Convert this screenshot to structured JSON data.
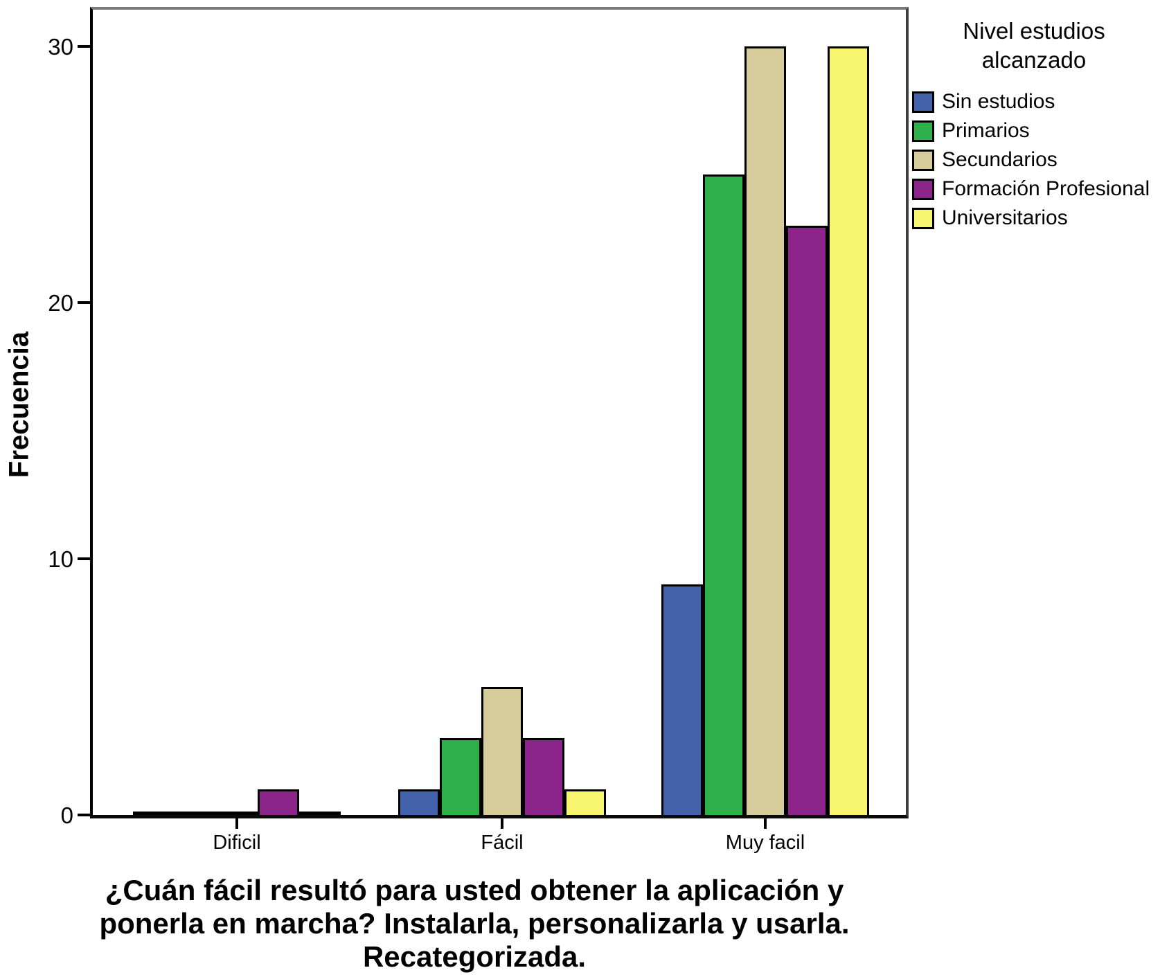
{
  "chart_data": {
    "type": "bar",
    "categories": [
      "Dificil",
      "Fácil",
      "Muy facil"
    ],
    "series": [
      {
        "name": "Sin estudios",
        "color": "#4461ac",
        "values": [
          0,
          1,
          9
        ]
      },
      {
        "name": "Primarios",
        "color": "#2eb14a",
        "values": [
          0,
          3,
          25
        ]
      },
      {
        "name": "Secundarios",
        "color": "#d5cb9b",
        "values": [
          0,
          5,
          30
        ]
      },
      {
        "name": "Formación Profesional",
        "color": "#8b2589",
        "values": [
          1,
          3,
          23
        ]
      },
      {
        "name": "Universitarios",
        "color": "#f8f66f",
        "values": [
          0,
          1,
          30
        ]
      }
    ],
    "ylabel": "Frecuencia",
    "yticks": [
      0,
      10,
      20,
      30
    ],
    "ylim": [
      0,
      31.6
    ],
    "grid": false,
    "legend_position": "top-right",
    "legend_title_lines": [
      "Nivel estudios",
      "alcanzado"
    ],
    "x_title_lines": [
      "¿Cuán fácil resultó para usted obtener la aplicación y",
      "ponerla en marcha? Instalarla, personalizarla y usarla.",
      "Recategorizada."
    ]
  }
}
